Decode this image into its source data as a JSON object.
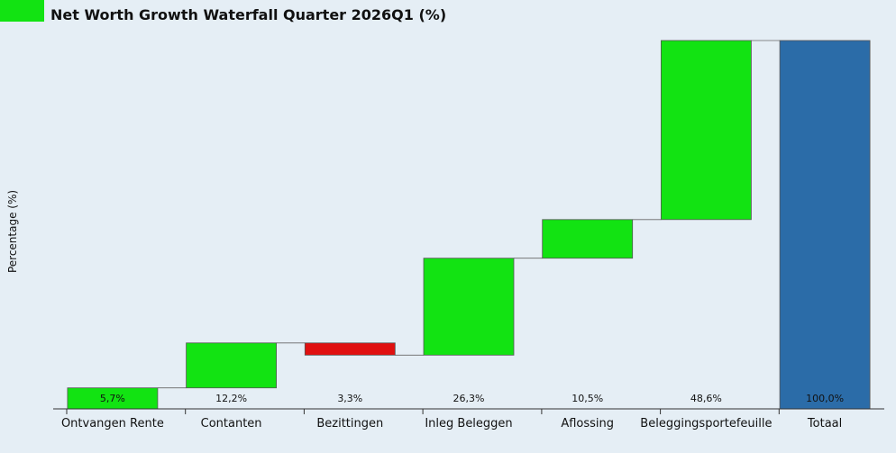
{
  "legend": {
    "color": "#12e312"
  },
  "chart_data": {
    "type": "bar",
    "subtype": "waterfall",
    "title": "Net Worth Growth Waterfall Quarter 2026Q1 (%)",
    "ylabel": "Percentage (%)",
    "xlabel": "",
    "grid": false,
    "ylim": [
      0,
      100
    ],
    "categories": [
      "Ontvangen Rente",
      "Contanten",
      "Bezittingen",
      "Inleg Beleggen",
      "Aflossing",
      "Beleggingsportefeuille",
      "Totaal"
    ],
    "values": [
      5.7,
      12.2,
      -3.3,
      26.3,
      10.5,
      48.6,
      100.0
    ],
    "labels": [
      "5,7%",
      "12,2%",
      "3,3%",
      "26,3%",
      "10,5%",
      "48,6%",
      "100,0%"
    ],
    "colors": {
      "increase": "#12e312",
      "decrease": "#e01010",
      "total": "#2b6ca8"
    }
  }
}
